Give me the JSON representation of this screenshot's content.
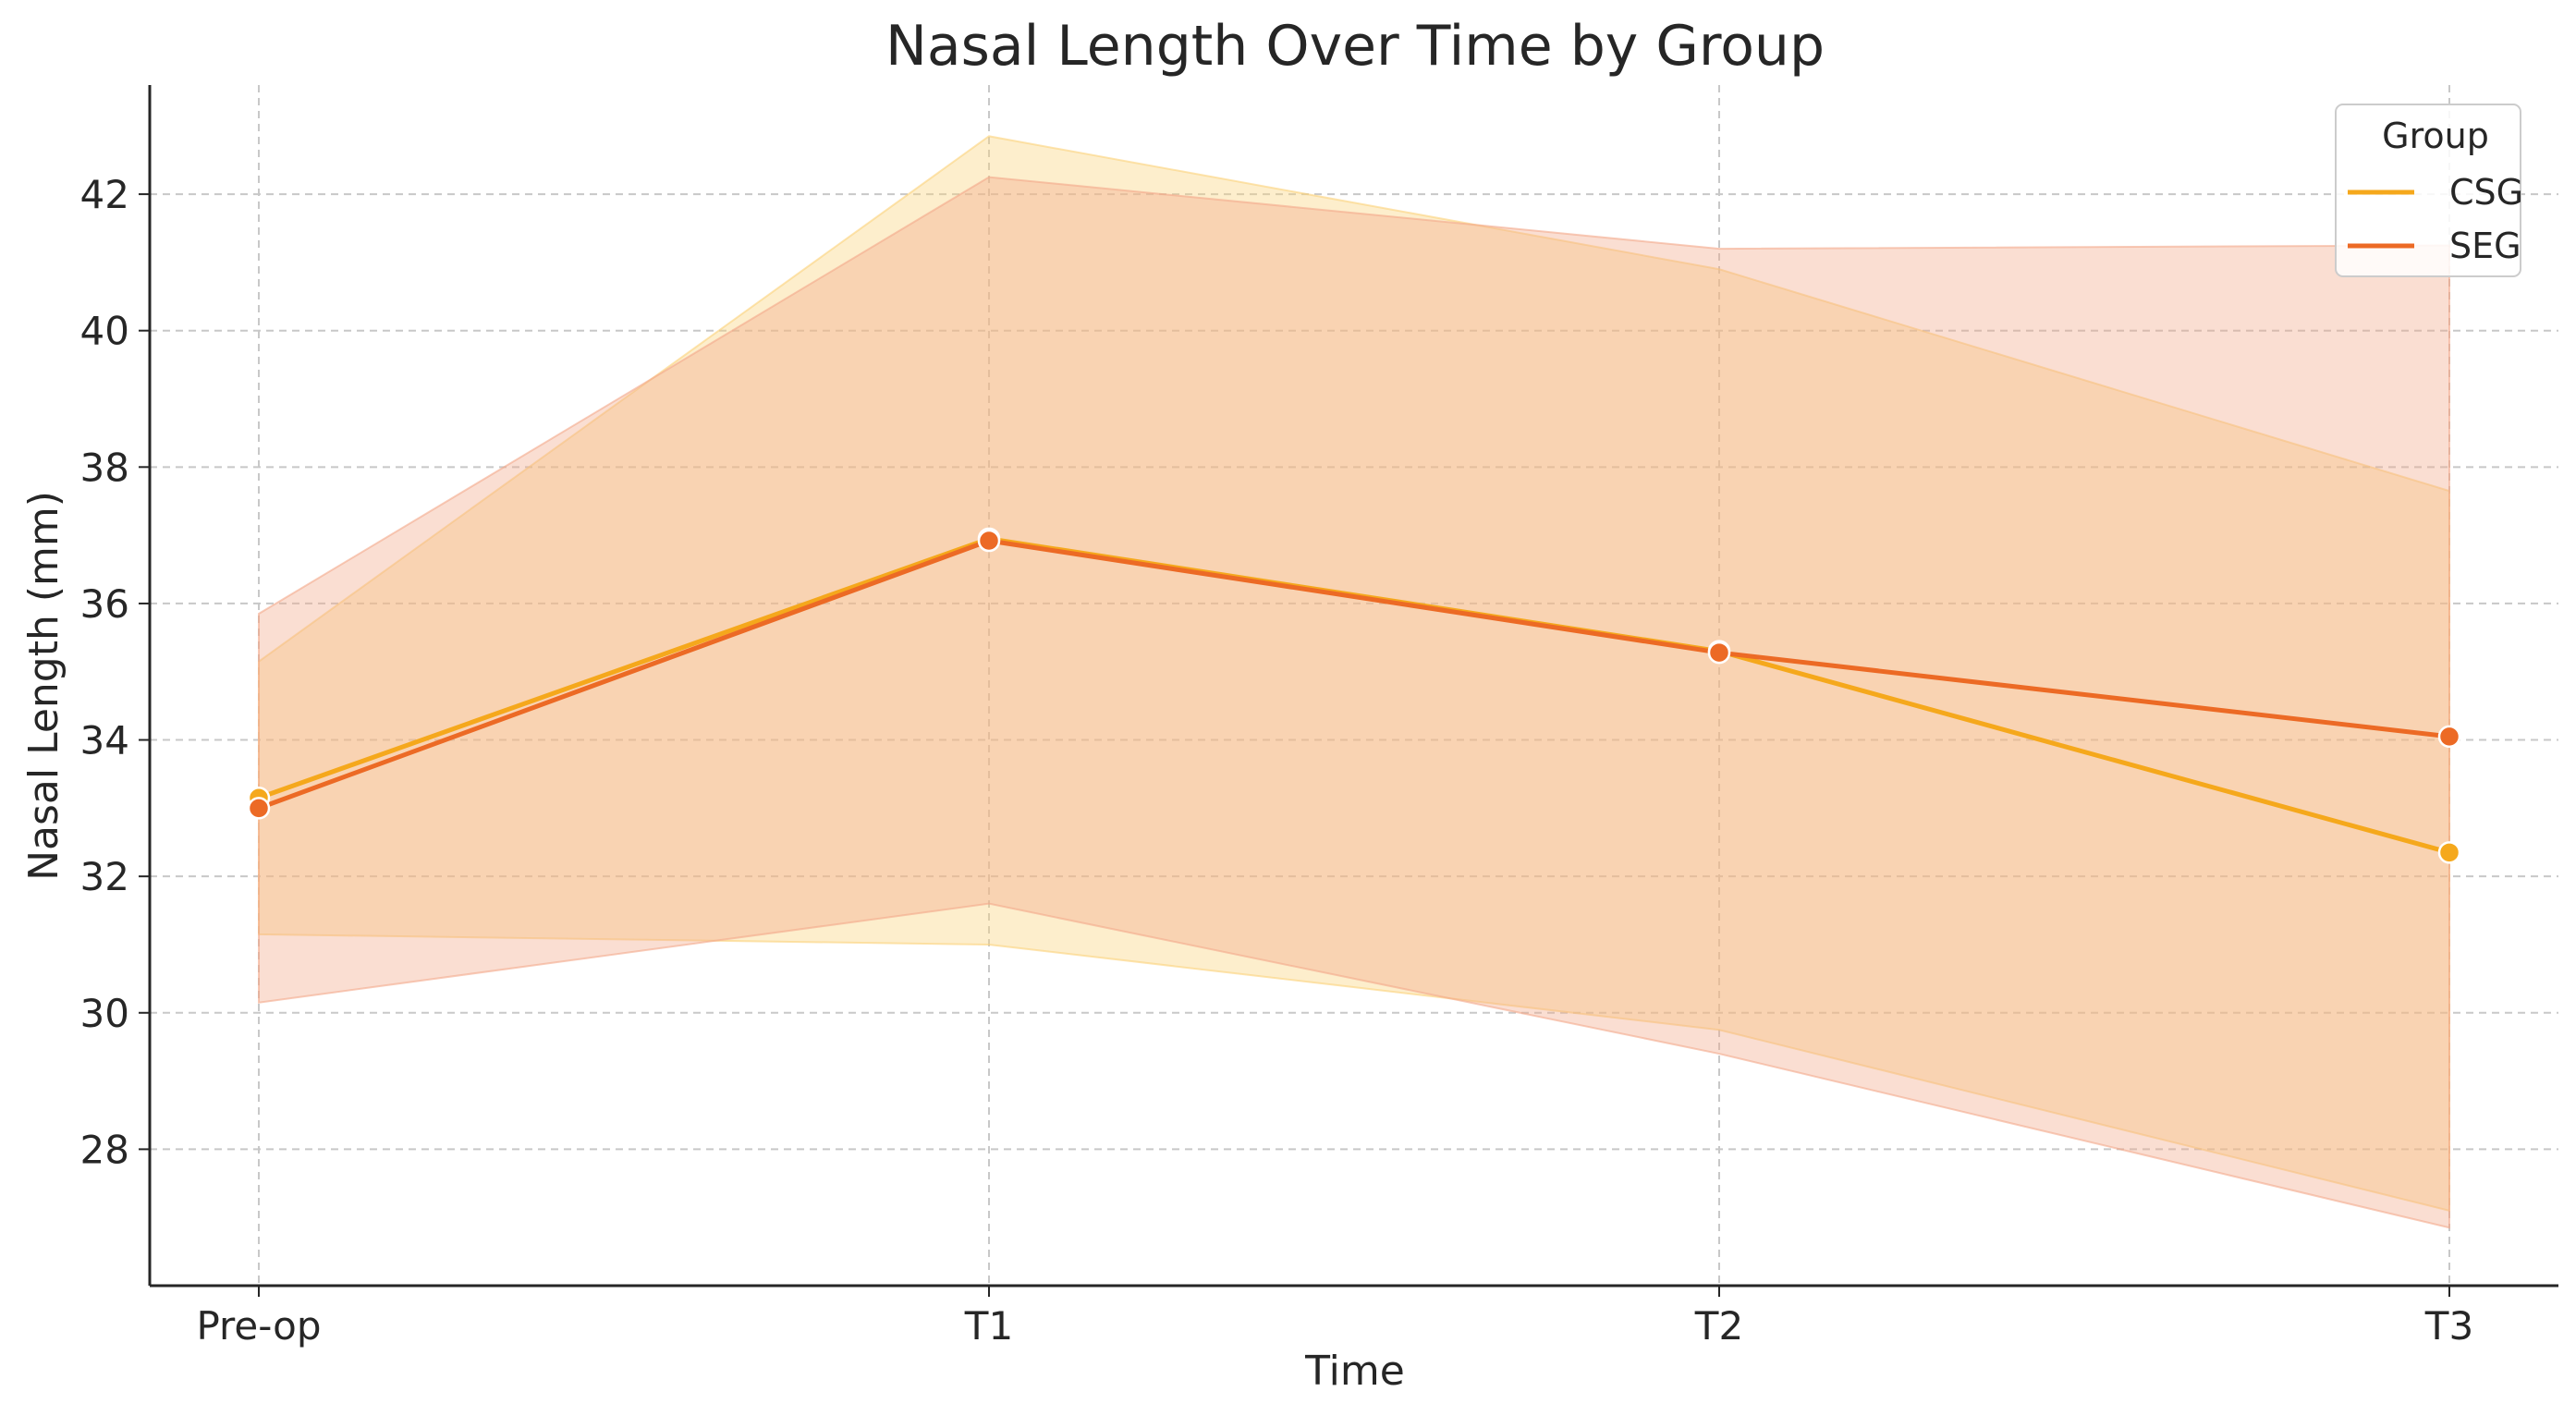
{
  "chart_data": {
    "type": "line",
    "title": "Nasal Length Over Time by Group",
    "xlabel": "Time",
    "ylabel": "Nasal Length (mm)",
    "categories": [
      "Pre-op",
      "T1",
      "T2",
      "T3"
    ],
    "ylim": [
      26.0,
      43.6
    ],
    "yticks": [
      28,
      30,
      32,
      34,
      36,
      38,
      40,
      42
    ],
    "grid": true,
    "legend": {
      "title": "Group",
      "position": "top-right"
    },
    "series": [
      {
        "name": "CSG",
        "color": "#f5a81c",
        "band_color": "#fbd27a",
        "values": [
          33.15,
          36.95,
          35.3,
          32.35
        ],
        "band_low": [
          31.15,
          31.0,
          29.75,
          27.1
        ],
        "band_high": [
          35.15,
          42.85,
          40.9,
          37.65
        ]
      },
      {
        "name": "SEG",
        "color": "#ec6a25",
        "band_color": "#f3a98a",
        "values": [
          33.0,
          36.92,
          35.28,
          34.05
        ],
        "band_low": [
          30.15,
          31.6,
          29.4,
          26.85
        ],
        "band_high": [
          35.85,
          42.25,
          41.2,
          41.25
        ]
      }
    ]
  }
}
